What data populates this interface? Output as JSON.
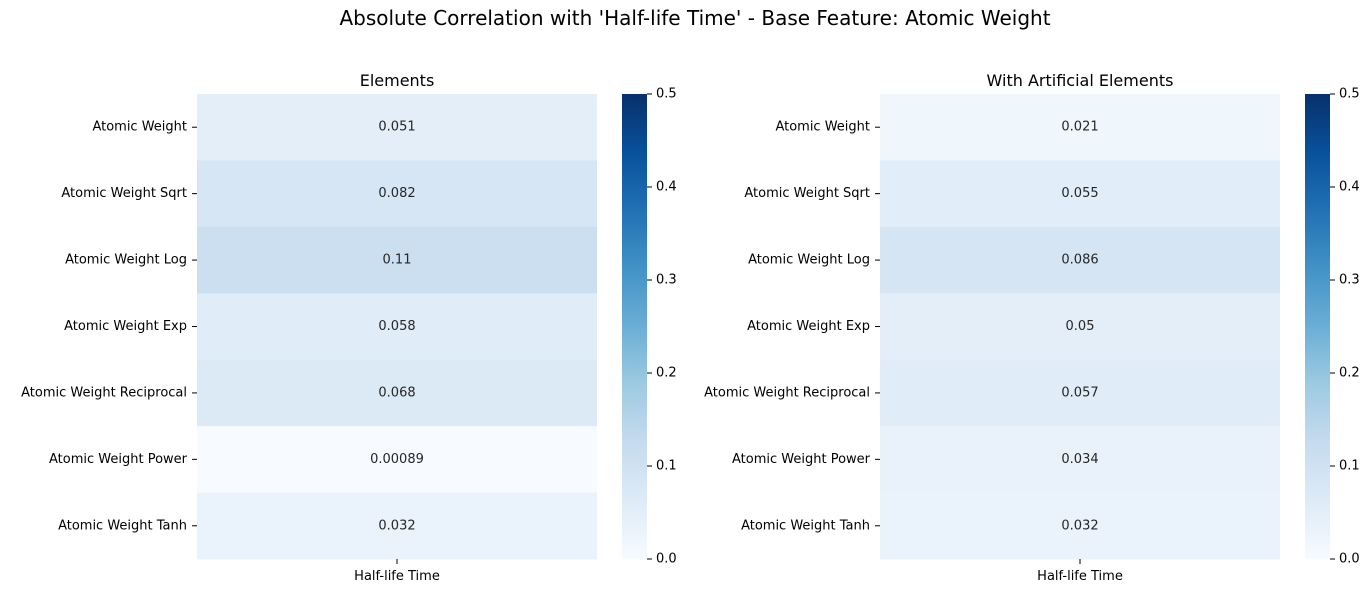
{
  "suptitle": "Absolute Correlation with 'Half-life Time' - Base Feature: Atomic Weight",
  "colormap": [
    "#f7fbff",
    "#deebf7",
    "#c6dbef",
    "#9ecae1",
    "#6baed6",
    "#4292c6",
    "#2171b5",
    "#08519c",
    "#08306b"
  ],
  "chart_data": [
    {
      "type": "heatmap",
      "title": "Elements",
      "rows": [
        "Atomic Weight",
        "Atomic Weight Sqrt",
        "Atomic Weight Log",
        "Atomic Weight Exp",
        "Atomic Weight Reciprocal",
        "Atomic Weight Power",
        "Atomic Weight Tanh"
      ],
      "columns": [
        "Half-life Time"
      ],
      "values": [
        0.051,
        0.082,
        0.11,
        0.058,
        0.068,
        0.00089,
        0.032
      ],
      "value_labels": [
        "0.051",
        "0.082",
        "0.11",
        "0.058",
        "0.068",
        "0.00089",
        "0.032"
      ],
      "vmin": 0,
      "vmax": 0.5,
      "colorbar_ticks": [
        "0.0",
        "0.1",
        "0.2",
        "0.3",
        "0.4",
        "0.5"
      ]
    },
    {
      "type": "heatmap",
      "title": "With Artificial Elements",
      "rows": [
        "Atomic Weight",
        "Atomic Weight Sqrt",
        "Atomic Weight Log",
        "Atomic Weight Exp",
        "Atomic Weight Reciprocal",
        "Atomic Weight Power",
        "Atomic Weight Tanh"
      ],
      "columns": [
        "Half-life Time"
      ],
      "values": [
        0.021,
        0.055,
        0.086,
        0.05,
        0.057,
        0.034,
        0.032
      ],
      "value_labels": [
        "0.021",
        "0.055",
        "0.086",
        "0.05",
        "0.057",
        "0.034",
        "0.032"
      ],
      "vmin": 0,
      "vmax": 0.5,
      "colorbar_ticks": [
        "0.0",
        "0.1",
        "0.2",
        "0.3",
        "0.4",
        "0.5"
      ]
    }
  ]
}
